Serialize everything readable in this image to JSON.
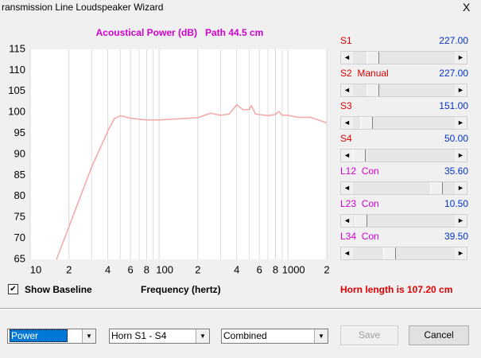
{
  "window": {
    "title": "ransmission Line Loudspeaker Wizard",
    "close": "X"
  },
  "chart_data": {
    "type": "line",
    "title": "Acoustical Power (dB)   Path 44.5 cm",
    "x_label": "Frequency (hertz)",
    "x": [
      16,
      20,
      30,
      40,
      45,
      50,
      60,
      80,
      100,
      150,
      200,
      250,
      300,
      350,
      400,
      450,
      500,
      520,
      560,
      700,
      800,
      850,
      900,
      1000,
      1200,
      1500,
      2000
    ],
    "series": [
      {
        "color": "#f4a6a6",
        "values": [
          65,
          72.8,
          87,
          95.5,
          98.5,
          99.2,
          98.6,
          98.2,
          98.2,
          98.5,
          98.7,
          99.8,
          99.3,
          99.6,
          101.8,
          100.6,
          100.7,
          101.6,
          99.6,
          99.2,
          99.5,
          100.2,
          99.3,
          99.3,
          98.8,
          98.8,
          97.5
        ]
      }
    ],
    "xscale": "log",
    "xlim": [
      10,
      2000
    ],
    "ylim": [
      65,
      115
    ],
    "xticks": [
      10,
      {
        "value": 20,
        "label": "2"
      },
      {
        "value": 40,
        "label": "4"
      },
      {
        "value": 60,
        "label": "6"
      },
      {
        "value": 80,
        "label": "8"
      },
      100,
      {
        "value": 200,
        "label": "2"
      },
      {
        "value": 400,
        "label": "4"
      },
      {
        "value": 600,
        "label": "6"
      },
      {
        "value": 800,
        "label": "8"
      },
      1000,
      {
        "value": 2000,
        "label": "2"
      }
    ],
    "xminorticks": [
      30,
      50,
      70,
      90,
      300,
      500,
      700,
      900
    ],
    "yticks": [
      65,
      70,
      75,
      80,
      85,
      90,
      95,
      100,
      105,
      110,
      115
    ],
    "grid": true
  },
  "sliders": [
    {
      "label": "S1",
      "value": "227.00",
      "color": "#e00000"
    },
    {
      "label": "S2  Manual",
      "value": "227.00",
      "color": "#e00000"
    },
    {
      "label": "S3",
      "value": "151.00",
      "color": "#e00000"
    },
    {
      "label": "S4",
      "value": "50.00",
      "color": "#e00000"
    },
    {
      "label": "L12  Con",
      "value": "35.60",
      "color": "#d000d0"
    },
    {
      "label": "L23  Con",
      "value": "10.50",
      "color": "#d000d0"
    },
    {
      "label": "L34  Con",
      "value": "39.50",
      "color": "#d000d0"
    }
  ],
  "checkbox": {
    "label": "Show Baseline",
    "checked": true
  },
  "horn_length": "Horn length is 107.20 cm",
  "dropdowns": [
    "Power",
    "Horn S1 - S4",
    "Combined"
  ],
  "buttons": {
    "save": "Save",
    "cancel": "Cancel"
  }
}
